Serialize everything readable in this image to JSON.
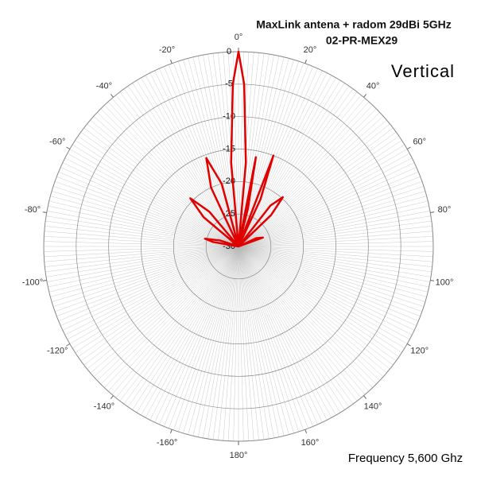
{
  "chart_data": {
    "type": "polar",
    "title": "MaxLink antena + radom 29dBi 5GHz",
    "subtitle": "02-PR-MEX29",
    "annotations": [
      "Vertical",
      "Frequency 5,600 Ghz"
    ],
    "theta": [
      -90,
      -80,
      -77,
      -72,
      -60,
      -50,
      -45,
      -40,
      -32,
      -25,
      -20,
      -15,
      -9,
      -5,
      -2,
      0,
      2,
      5,
      8,
      11,
      14,
      17,
      21,
      25,
      30,
      38,
      42,
      46,
      55,
      65,
      70,
      78,
      90
    ],
    "series": [
      {
        "name": "Vertical",
        "color": "#e00000",
        "values": [
          -30,
          -26,
          -24.7,
          -27,
          -30,
          -23,
          -19.5,
          -23,
          -30,
          -20,
          -15.5,
          -20,
          -30,
          -17,
          -5,
          0,
          -5,
          -17,
          -30,
          -16,
          -24,
          -30,
          -15,
          -22,
          -30,
          -22,
          -19.8,
          -23,
          -30,
          -27,
          -26,
          -30,
          -30
        ]
      }
    ],
    "rlim": [
      -30,
      0
    ],
    "rticks": [
      0,
      -5,
      -10,
      -15,
      -20,
      -25,
      -30
    ],
    "thetaticks": [
      {
        "value": 0,
        "label": "0°"
      },
      {
        "value": 20,
        "label": "20°"
      },
      {
        "value": 40,
        "label": "40°"
      },
      {
        "value": 60,
        "label": "60°"
      },
      {
        "value": 80,
        "label": "80°"
      },
      {
        "value": 100,
        "label": "100°"
      },
      {
        "value": 120,
        "label": "120°"
      },
      {
        "value": 140,
        "label": "140°"
      },
      {
        "value": 160,
        "label": "160°"
      },
      {
        "value": 180,
        "label": "180°"
      },
      {
        "value": -160,
        "label": "-160°"
      },
      {
        "value": -140,
        "label": "-140°"
      },
      {
        "value": -120,
        "label": "-120°"
      },
      {
        "value": -100,
        "label": "-100°"
      },
      {
        "value": -80,
        "label": "-80°"
      },
      {
        "value": -60,
        "label": "-60°"
      },
      {
        "value": -40,
        "label": "-40°"
      },
      {
        "value": -20,
        "label": "-20°"
      }
    ],
    "grid": true
  }
}
